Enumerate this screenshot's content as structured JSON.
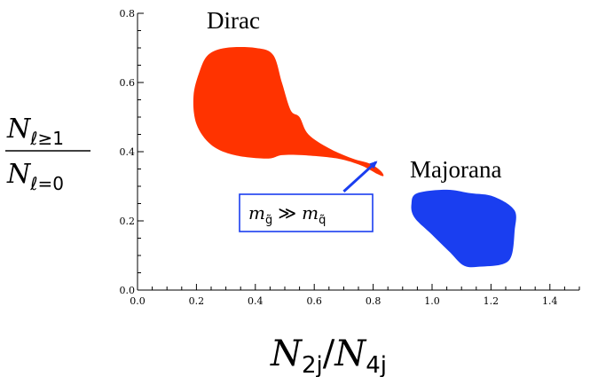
{
  "chart_data": {
    "type": "scatter",
    "title": "",
    "xlim": [
      0.0,
      1.5
    ],
    "ylim": [
      0.0,
      0.8
    ],
    "x_ticks": [
      "0.0",
      "0.2",
      "0.4",
      "0.6",
      "0.8",
      "1.0",
      "1.2",
      "1.4"
    ],
    "y_ticks": [
      "0.0",
      "0.2",
      "0.4",
      "0.6",
      "0.8"
    ],
    "xlabel": {
      "N": "N",
      "sub1": "2j",
      "slash": "/",
      "N2": "N",
      "sub2": "4j"
    },
    "ylabel": {
      "num_N": "N",
      "num_sub": "ℓ≥1",
      "den_N": "N",
      "den_sub": "ℓ=0"
    },
    "grid": false,
    "series": [
      {
        "name": "Dirac",
        "color": "#ff3300",
        "outline": [
          [
            0.21,
            0.63
          ],
          [
            0.24,
            0.68
          ],
          [
            0.3,
            0.7
          ],
          [
            0.4,
            0.7
          ],
          [
            0.46,
            0.68
          ],
          [
            0.49,
            0.6
          ],
          [
            0.52,
            0.52
          ],
          [
            0.55,
            0.5
          ],
          [
            0.58,
            0.45
          ],
          [
            0.65,
            0.41
          ],
          [
            0.73,
            0.38
          ],
          [
            0.79,
            0.365
          ],
          [
            0.825,
            0.345
          ],
          [
            0.835,
            0.33
          ],
          [
            0.815,
            0.335
          ],
          [
            0.76,
            0.36
          ],
          [
            0.68,
            0.38
          ],
          [
            0.56,
            0.39
          ],
          [
            0.49,
            0.39
          ],
          [
            0.44,
            0.38
          ],
          [
            0.33,
            0.39
          ],
          [
            0.25,
            0.42
          ],
          [
            0.2,
            0.48
          ],
          [
            0.19,
            0.56
          ]
        ]
      },
      {
        "name": "Majorana",
        "color": "#1a3ef0",
        "outline": [
          [
            0.93,
            0.25
          ],
          [
            0.95,
            0.28
          ],
          [
            1.05,
            0.29
          ],
          [
            1.13,
            0.28
          ],
          [
            1.21,
            0.27
          ],
          [
            1.28,
            0.23
          ],
          [
            1.28,
            0.17
          ],
          [
            1.27,
            0.1
          ],
          [
            1.24,
            0.075
          ],
          [
            1.17,
            0.068
          ],
          [
            1.11,
            0.07
          ],
          [
            1.06,
            0.11
          ],
          [
            1.0,
            0.16
          ],
          [
            0.94,
            0.21
          ]
        ]
      }
    ],
    "annotation": {
      "text_m1": "m",
      "sub1": "g̃",
      "op": "≫",
      "text_m2": "m",
      "sub2": "q̃",
      "box_color": "#1a3ef0",
      "arrow_from": [
        0.7,
        0.285
      ],
      "arrow_to": [
        0.81,
        0.37
      ]
    }
  }
}
